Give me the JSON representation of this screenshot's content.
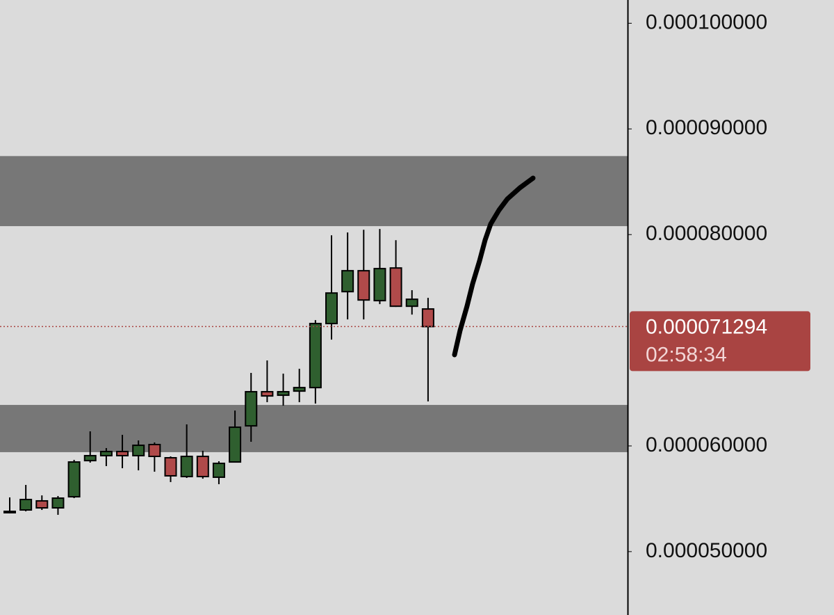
{
  "chart_data": {
    "type": "candlestick",
    "open": [
      5.368e-05,
      5.394e-05,
      5.48e-05,
      5.414e-05,
      5.519e-05,
      5.861e-05,
      5.908e-05,
      5.947e-05,
      5.908e-05,
      6.013e-05,
      5.888e-05,
      5.71e-05,
      5.901e-05,
      5.704e-05,
      5.848e-05,
      6.19e-05,
      6.513e-05,
      6.48e-05,
      6.519e-05,
      6.552e-05,
      7.158e-05,
      7.46e-05,
      7.658e-05,
      7.375e-05,
      7.684e-05,
      7.322e-05,
      7.296e-05
    ],
    "high": [
      5.513e-05,
      5.631e-05,
      5.532e-05,
      5.526e-05,
      5.868e-05,
      6.138e-05,
      5.98e-05,
      6.105e-05,
      6.052e-05,
      6.033e-05,
      5.901e-05,
      6.204e-05,
      5.954e-05,
      5.855e-05,
      6.335e-05,
      6.691e-05,
      6.809e-05,
      6.684e-05,
      6.73e-05,
      7.191e-05,
      7.993e-05,
      8.02e-05,
      8.046e-05,
      8.053e-05,
      7.947e-05,
      7.474e-05,
      7.401e-05
    ],
    "low": [
      5.361e-05,
      5.381e-05,
      5.394e-05,
      5.348e-05,
      5.506e-05,
      5.842e-05,
      5.809e-05,
      5.789e-05,
      5.769e-05,
      5.756e-05,
      5.658e-05,
      5.697e-05,
      5.69e-05,
      5.638e-05,
      5.848e-05,
      6.039e-05,
      6.414e-05,
      6.381e-05,
      6.414e-05,
      6.401e-05,
      7.006e-05,
      7.197e-05,
      7.197e-05,
      7.342e-05,
      7.316e-05,
      7.243e-05,
      6.421e-05
    ],
    "close": [
      5.381e-05,
      5.493e-05,
      5.414e-05,
      5.506e-05,
      5.848e-05,
      5.908e-05,
      5.947e-05,
      5.908e-05,
      6.006e-05,
      5.901e-05,
      5.717e-05,
      5.901e-05,
      5.71e-05,
      5.835e-05,
      6.177e-05,
      6.513e-05,
      6.473e-05,
      6.513e-05,
      6.552e-05,
      7.158e-05,
      7.447e-05,
      7.658e-05,
      7.381e-05,
      7.678e-05,
      7.322e-05,
      7.388e-05,
      7.1294e-05
    ],
    "up_color": "#2f5f2f",
    "down_color": "#b04a4a",
    "zones": [
      {
        "low": 8.08e-05,
        "high": 8.743e-05
      },
      {
        "low": 5.941e-05,
        "high": 6.388e-05
      }
    ],
    "zone_color": "#777777",
    "last_price": 7.1294e-05,
    "countdown": "02:58:34",
    "price_color": "#a94442",
    "ylim": [
      4.4e-05,
      0.0001022
    ],
    "yticks": [
      {
        "value": 5e-05,
        "label": "0.000050000"
      },
      {
        "value": 6e-05,
        "label": "0.000060000"
      },
      {
        "value": 8e-05,
        "label": "0.000080000"
      },
      {
        "value": 9e-05,
        "label": "0.000090000"
      },
      {
        "value": 0.0001,
        "label": "0.000100000"
      }
    ]
  }
}
